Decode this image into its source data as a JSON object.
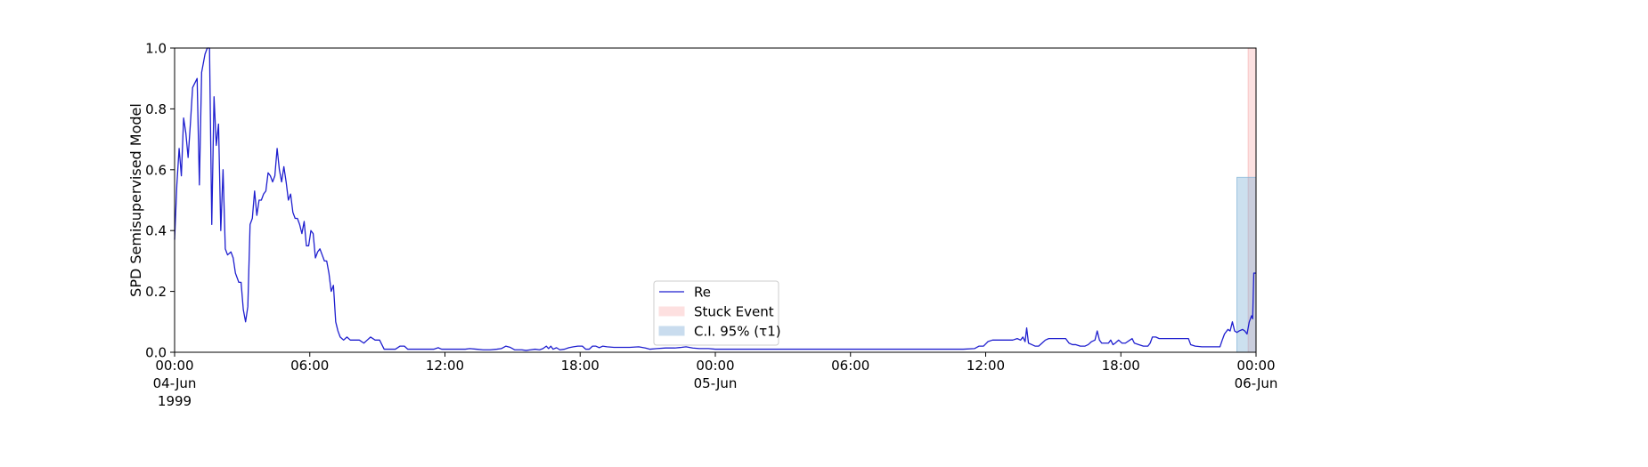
{
  "chart_data": {
    "type": "line",
    "ylabel": "SPD Semisupervised Model",
    "ylim": [
      0.0,
      1.0
    ],
    "xlim": [
      0,
      48
    ],
    "x_unit": "hours from 04-Jun 00:00",
    "y_ticks": [
      "0.0",
      "0.2",
      "0.4",
      "0.6",
      "0.8",
      "1.0"
    ],
    "x_ticks": [
      {
        "x": 0,
        "line1": "00:00",
        "line2": "04-Jun",
        "line3": "1999"
      },
      {
        "x": 6,
        "line1": "06:00",
        "line2": "",
        "line3": ""
      },
      {
        "x": 12,
        "line1": "12:00",
        "line2": "",
        "line3": ""
      },
      {
        "x": 18,
        "line1": "18:00",
        "line2": "",
        "line3": ""
      },
      {
        "x": 24,
        "line1": "00:00",
        "line2": "05-Jun",
        "line3": ""
      },
      {
        "x": 30,
        "line1": "06:00",
        "line2": "",
        "line3": ""
      },
      {
        "x": 36,
        "line1": "12:00",
        "line2": "",
        "line3": ""
      },
      {
        "x": 42,
        "line1": "18:00",
        "line2": "",
        "line3": ""
      },
      {
        "x": 48,
        "line1": "00:00",
        "line2": "06-Jun",
        "line3": ""
      }
    ],
    "legend_position": "lower-center",
    "series": [
      {
        "name": "Re",
        "color": "#1f1fcf",
        "points": [
          [
            0.0,
            0.37
          ],
          [
            0.1,
            0.55
          ],
          [
            0.2,
            0.67
          ],
          [
            0.3,
            0.58
          ],
          [
            0.4,
            0.77
          ],
          [
            0.5,
            0.72
          ],
          [
            0.6,
            0.64
          ],
          [
            0.7,
            0.75
          ],
          [
            0.8,
            0.87
          ],
          [
            1.0,
            0.9
          ],
          [
            1.1,
            0.55
          ],
          [
            1.2,
            0.92
          ],
          [
            1.35,
            0.98
          ],
          [
            1.45,
            1.0
          ],
          [
            1.55,
            1.0
          ],
          [
            1.65,
            0.42
          ],
          [
            1.75,
            0.84
          ],
          [
            1.85,
            0.68
          ],
          [
            1.95,
            0.75
          ],
          [
            2.05,
            0.4
          ],
          [
            2.15,
            0.6
          ],
          [
            2.25,
            0.34
          ],
          [
            2.35,
            0.32
          ],
          [
            2.5,
            0.33
          ],
          [
            2.6,
            0.31
          ],
          [
            2.7,
            0.26
          ],
          [
            2.85,
            0.23
          ],
          [
            2.95,
            0.23
          ],
          [
            3.05,
            0.14
          ],
          [
            3.15,
            0.1
          ],
          [
            3.25,
            0.15
          ],
          [
            3.35,
            0.42
          ],
          [
            3.45,
            0.44
          ],
          [
            3.55,
            0.53
          ],
          [
            3.65,
            0.45
          ],
          [
            3.75,
            0.5
          ],
          [
            3.85,
            0.5
          ],
          [
            3.95,
            0.52
          ],
          [
            4.05,
            0.53
          ],
          [
            4.15,
            0.59
          ],
          [
            4.25,
            0.58
          ],
          [
            4.35,
            0.56
          ],
          [
            4.45,
            0.58
          ],
          [
            4.55,
            0.67
          ],
          [
            4.65,
            0.6
          ],
          [
            4.75,
            0.56
          ],
          [
            4.85,
            0.61
          ],
          [
            4.95,
            0.56
          ],
          [
            5.05,
            0.5
          ],
          [
            5.15,
            0.52
          ],
          [
            5.25,
            0.46
          ],
          [
            5.35,
            0.44
          ],
          [
            5.45,
            0.44
          ],
          [
            5.55,
            0.42
          ],
          [
            5.65,
            0.39
          ],
          [
            5.75,
            0.43
          ],
          [
            5.85,
            0.35
          ],
          [
            5.95,
            0.35
          ],
          [
            6.05,
            0.4
          ],
          [
            6.15,
            0.39
          ],
          [
            6.25,
            0.31
          ],
          [
            6.35,
            0.33
          ],
          [
            6.45,
            0.34
          ],
          [
            6.55,
            0.32
          ],
          [
            6.65,
            0.3
          ],
          [
            6.75,
            0.3
          ],
          [
            6.85,
            0.26
          ],
          [
            6.95,
            0.2
          ],
          [
            7.05,
            0.22
          ],
          [
            7.15,
            0.1
          ],
          [
            7.25,
            0.07
          ],
          [
            7.35,
            0.05
          ],
          [
            7.5,
            0.04
          ],
          [
            7.65,
            0.05
          ],
          [
            7.8,
            0.04
          ],
          [
            8.0,
            0.04
          ],
          [
            8.2,
            0.04
          ],
          [
            8.4,
            0.03
          ],
          [
            8.55,
            0.04
          ],
          [
            8.7,
            0.05
          ],
          [
            8.9,
            0.04
          ],
          [
            9.1,
            0.04
          ],
          [
            9.3,
            0.01
          ],
          [
            9.6,
            0.01
          ],
          [
            9.8,
            0.01
          ],
          [
            10.0,
            0.02
          ],
          [
            10.2,
            0.02
          ],
          [
            10.35,
            0.01
          ],
          [
            10.6,
            0.01
          ],
          [
            11.0,
            0.01
          ],
          [
            11.3,
            0.01
          ],
          [
            11.5,
            0.01
          ],
          [
            11.7,
            0.015
          ],
          [
            11.85,
            0.01
          ],
          [
            12.2,
            0.01
          ],
          [
            12.6,
            0.01
          ],
          [
            12.9,
            0.01
          ],
          [
            13.1,
            0.012
          ],
          [
            13.4,
            0.01
          ],
          [
            13.7,
            0.008
          ],
          [
            14.0,
            0.008
          ],
          [
            14.3,
            0.01
          ],
          [
            14.5,
            0.012
          ],
          [
            14.7,
            0.02
          ],
          [
            14.9,
            0.016
          ],
          [
            15.1,
            0.008
          ],
          [
            15.4,
            0.008
          ],
          [
            15.6,
            0.006
          ],
          [
            15.8,
            0.008
          ],
          [
            16.0,
            0.01
          ],
          [
            16.2,
            0.008
          ],
          [
            16.35,
            0.012
          ],
          [
            16.5,
            0.02
          ],
          [
            16.6,
            0.012
          ],
          [
            16.7,
            0.02
          ],
          [
            16.8,
            0.01
          ],
          [
            16.95,
            0.015
          ],
          [
            17.1,
            0.008
          ],
          [
            17.3,
            0.01
          ],
          [
            17.5,
            0.015
          ],
          [
            17.7,
            0.018
          ],
          [
            17.9,
            0.02
          ],
          [
            18.1,
            0.02
          ],
          [
            18.25,
            0.01
          ],
          [
            18.4,
            0.01
          ],
          [
            18.55,
            0.02
          ],
          [
            18.7,
            0.02
          ],
          [
            18.85,
            0.015
          ],
          [
            19.0,
            0.02
          ],
          [
            19.2,
            0.018
          ],
          [
            19.5,
            0.016
          ],
          [
            19.8,
            0.016
          ],
          [
            20.2,
            0.016
          ],
          [
            20.6,
            0.018
          ],
          [
            20.9,
            0.014
          ],
          [
            21.1,
            0.01
          ],
          [
            21.4,
            0.012
          ],
          [
            21.8,
            0.014
          ],
          [
            22.2,
            0.014
          ],
          [
            22.5,
            0.016
          ],
          [
            22.7,
            0.018
          ],
          [
            23.0,
            0.014
          ],
          [
            23.3,
            0.012
          ],
          [
            23.7,
            0.012
          ],
          [
            24.0,
            0.01
          ],
          [
            24.5,
            0.01
          ],
          [
            25.0,
            0.01
          ],
          [
            26.0,
            0.01
          ],
          [
            27.0,
            0.01
          ],
          [
            28.0,
            0.01
          ],
          [
            29.0,
            0.01
          ],
          [
            30.0,
            0.01
          ],
          [
            31.0,
            0.01
          ],
          [
            32.0,
            0.01
          ],
          [
            33.0,
            0.01
          ],
          [
            34.0,
            0.01
          ],
          [
            35.0,
            0.01
          ],
          [
            35.5,
            0.012
          ],
          [
            35.7,
            0.02
          ],
          [
            35.9,
            0.02
          ],
          [
            36.1,
            0.035
          ],
          [
            36.3,
            0.04
          ],
          [
            36.6,
            0.04
          ],
          [
            36.9,
            0.04
          ],
          [
            37.2,
            0.04
          ],
          [
            37.4,
            0.045
          ],
          [
            37.55,
            0.04
          ],
          [
            37.65,
            0.05
          ],
          [
            37.75,
            0.035
          ],
          [
            37.82,
            0.08
          ],
          [
            37.9,
            0.03
          ],
          [
            38.05,
            0.025
          ],
          [
            38.2,
            0.02
          ],
          [
            38.35,
            0.02
          ],
          [
            38.5,
            0.03
          ],
          [
            38.65,
            0.04
          ],
          [
            38.8,
            0.045
          ],
          [
            39.0,
            0.045
          ],
          [
            39.2,
            0.045
          ],
          [
            39.4,
            0.045
          ],
          [
            39.55,
            0.045
          ],
          [
            39.7,
            0.03
          ],
          [
            39.85,
            0.025
          ],
          [
            40.0,
            0.025
          ],
          [
            40.2,
            0.02
          ],
          [
            40.4,
            0.02
          ],
          [
            40.55,
            0.025
          ],
          [
            40.7,
            0.035
          ],
          [
            40.85,
            0.04
          ],
          [
            40.95,
            0.07
          ],
          [
            41.05,
            0.04
          ],
          [
            41.15,
            0.03
          ],
          [
            41.3,
            0.03
          ],
          [
            41.45,
            0.03
          ],
          [
            41.55,
            0.04
          ],
          [
            41.65,
            0.025
          ],
          [
            41.75,
            0.03
          ],
          [
            41.9,
            0.04
          ],
          [
            42.05,
            0.03
          ],
          [
            42.2,
            0.03
          ],
          [
            42.4,
            0.04
          ],
          [
            42.5,
            0.045
          ],
          [
            42.6,
            0.03
          ],
          [
            42.8,
            0.025
          ],
          [
            43.0,
            0.02
          ],
          [
            43.2,
            0.02
          ],
          [
            43.3,
            0.03
          ],
          [
            43.4,
            0.05
          ],
          [
            43.55,
            0.05
          ],
          [
            43.7,
            0.045
          ],
          [
            43.9,
            0.045
          ],
          [
            44.2,
            0.045
          ],
          [
            44.5,
            0.045
          ],
          [
            44.8,
            0.045
          ],
          [
            45.0,
            0.045
          ],
          [
            45.1,
            0.025
          ],
          [
            45.3,
            0.02
          ],
          [
            45.6,
            0.018
          ],
          [
            45.9,
            0.018
          ],
          [
            46.2,
            0.018
          ],
          [
            46.4,
            0.018
          ],
          [
            46.5,
            0.04
          ],
          [
            46.6,
            0.06
          ],
          [
            46.75,
            0.075
          ],
          [
            46.85,
            0.07
          ],
          [
            46.95,
            0.1
          ],
          [
            47.05,
            0.07
          ],
          [
            47.15,
            0.065
          ],
          [
            47.25,
            0.07
          ],
          [
            47.4,
            0.075
          ],
          [
            47.5,
            0.07
          ],
          [
            47.6,
            0.06
          ],
          [
            47.7,
            0.1
          ],
          [
            47.8,
            0.12
          ],
          [
            47.85,
            0.11
          ],
          [
            47.9,
            0.26
          ],
          [
            48.0,
            0.26
          ]
        ]
      }
    ],
    "regions": [
      {
        "name": "Stuck Event",
        "x0": 47.65,
        "x1": 48.0,
        "y0": 0.0,
        "y1": 1.0,
        "color": "#f8b4b4",
        "opacity": 0.4
      },
      {
        "name": "C.I. 95% (τ1)",
        "x0": 47.15,
        "x1": 48.0,
        "y0": 0.0,
        "y1": 0.575,
        "color": "#7fb2d6",
        "opacity": 0.4
      }
    ],
    "legend": [
      {
        "label": "Re",
        "kind": "line",
        "color": "#1f1fcf"
      },
      {
        "label": "Stuck Event",
        "kind": "patch",
        "color": "#fde0e0"
      },
      {
        "label": "C.I. 95% (τ1)",
        "kind": "patch",
        "color": "#c9dcee"
      }
    ]
  }
}
